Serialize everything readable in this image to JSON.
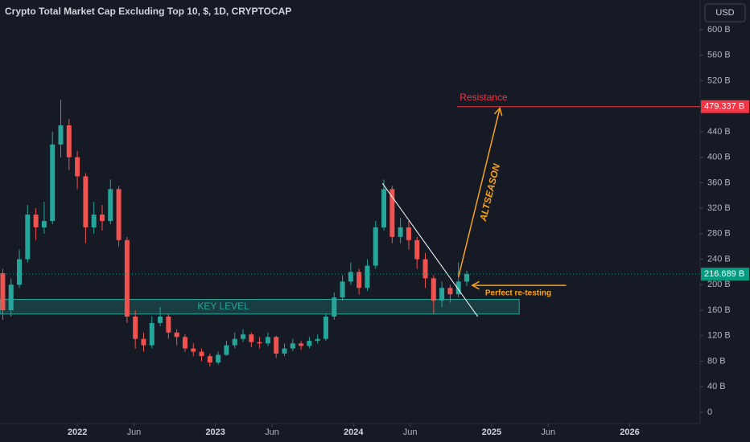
{
  "chart_data": {
    "type": "candlestick",
    "title": "Crypto Total Market Cap Excluding Top 10, $, 1D, CRYPTOCAP",
    "currency": "USD",
    "up_color": "#26a69a",
    "down_color": "#ef5350",
    "x": [
      2021.46,
      2021.52,
      2021.58,
      2021.64,
      2021.7,
      2021.76,
      2021.82,
      2021.88,
      2021.94,
      2022.0,
      2022.06,
      2022.12,
      2022.18,
      2022.24,
      2022.3,
      2022.36,
      2022.42,
      2022.48,
      2022.54,
      2022.6,
      2022.66,
      2022.72,
      2022.78,
      2022.84,
      2022.9,
      2022.96,
      2023.02,
      2023.08,
      2023.14,
      2023.2,
      2023.26,
      2023.32,
      2023.38,
      2023.44,
      2023.5,
      2023.56,
      2023.62,
      2023.68,
      2023.74,
      2023.8,
      2023.86,
      2023.92,
      2023.98,
      2024.04,
      2024.1,
      2024.16,
      2024.22,
      2024.28,
      2024.34,
      2024.4,
      2024.46,
      2024.52,
      2024.58,
      2024.64,
      2024.7,
      2024.76,
      2024.82
    ],
    "open": [
      218,
      160,
      200,
      240,
      310,
      290,
      300,
      420,
      450,
      400,
      370,
      290,
      310,
      300,
      350,
      270,
      150,
      115,
      105,
      140,
      150,
      125,
      118,
      100,
      95,
      88,
      78,
      90,
      105,
      115,
      122,
      110,
      108,
      118,
      92,
      100,
      108,
      104,
      112,
      115,
      150,
      180,
      205,
      220,
      195,
      230,
      290,
      350,
      275,
      290,
      270,
      240,
      210,
      175,
      195,
      185,
      205
    ],
    "high": [
      225,
      210,
      255,
      325,
      320,
      330,
      440,
      490,
      460,
      410,
      375,
      330,
      325,
      365,
      355,
      275,
      160,
      125,
      150,
      165,
      155,
      130,
      122,
      108,
      100,
      92,
      95,
      112,
      125,
      130,
      125,
      118,
      125,
      120,
      108,
      115,
      112,
      118,
      122,
      155,
      188,
      215,
      235,
      225,
      240,
      300,
      365,
      355,
      305,
      300,
      275,
      250,
      215,
      205,
      200,
      235,
      222
    ],
    "low": [
      145,
      150,
      195,
      235,
      270,
      280,
      295,
      400,
      380,
      350,
      265,
      280,
      285,
      295,
      260,
      140,
      100,
      95,
      100,
      135,
      115,
      105,
      95,
      88,
      80,
      72,
      75,
      88,
      100,
      110,
      102,
      100,
      104,
      85,
      88,
      96,
      98,
      100,
      108,
      112,
      145,
      175,
      200,
      185,
      190,
      225,
      285,
      265,
      265,
      255,
      225,
      195,
      155,
      165,
      172,
      180,
      198
    ],
    "close": [
      160,
      200,
      240,
      310,
      290,
      300,
      420,
      450,
      400,
      370,
      290,
      310,
      300,
      350,
      270,
      150,
      115,
      105,
      140,
      150,
      125,
      118,
      100,
      95,
      88,
      78,
      90,
      105,
      115,
      122,
      110,
      108,
      118,
      92,
      100,
      108,
      104,
      112,
      115,
      150,
      180,
      205,
      220,
      195,
      230,
      290,
      350,
      275,
      290,
      270,
      240,
      210,
      175,
      195,
      185,
      205,
      217
    ],
    "xlim": [
      2021.44,
      2026.51
    ],
    "xticks": [
      2022,
      {
        "value": 2022.41,
        "label": "Jun"
      },
      2023,
      {
        "value": 2023.41,
        "label": "Jun"
      },
      2024,
      {
        "value": 2024.41,
        "label": "Jun"
      },
      2025,
      {
        "value": 2025.41,
        "label": "Jun"
      },
      2026
    ],
    "ylim": [
      -17.7,
      646.6
    ],
    "yticks": [
      0,
      {
        "value": 40,
        "label": "40 B"
      },
      {
        "value": 80,
        "label": "80 B"
      },
      {
        "value": 120,
        "label": "120 B"
      },
      {
        "value": 160,
        "label": "160 B"
      },
      {
        "value": 200,
        "label": "200 B"
      },
      {
        "value": 240,
        "label": "240 B"
      },
      {
        "value": 280,
        "label": "280 B"
      },
      {
        "value": 320,
        "label": "320 B"
      },
      {
        "value": 360,
        "label": "360 B"
      },
      {
        "value": 400,
        "label": "400 B"
      },
      {
        "value": 440,
        "label": "440 B"
      },
      {
        "value": 520,
        "label": "520 B"
      },
      {
        "value": 560,
        "label": "560 B"
      },
      {
        "value": 600,
        "label": "600 B"
      }
    ],
    "last_price": {
      "value": 216.689,
      "label": "216.689 B",
      "color": "#089981"
    },
    "resistance": {
      "value": 479.337,
      "label": "479.337 B",
      "text": "Resistance",
      "color": "#f23645",
      "x": 2024.75
    },
    "key_level": {
      "text": "KEY LEVEL",
      "range": [
        154,
        177
      ],
      "x": [
        2021.44,
        2025.2
      ],
      "color": "#26a69a"
    },
    "trendline": {
      "x": [
        2024.21,
        2024.9
      ],
      "y": [
        359,
        150
      ],
      "color": "#ffffff"
    },
    "annotations": [
      {
        "text": "ALTSEASON",
        "x": [
          2024.76,
          2025.06
        ],
        "y": [
          212,
          477
        ],
        "color": "#f7a21b"
      },
      {
        "text": "Perfect re-testing",
        "x": [
          2025.54,
          2024.86
        ],
        "y": [
          199,
          199
        ],
        "color": "#f7a21b"
      }
    ]
  }
}
